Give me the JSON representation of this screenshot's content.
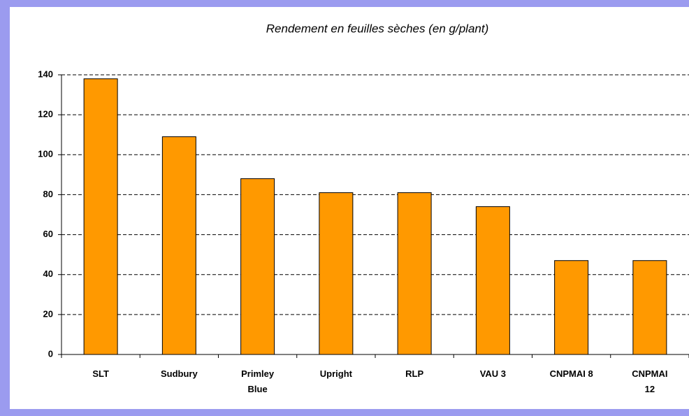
{
  "chart_data": {
    "type": "bar",
    "title": "Rendement en feuilles sèches  (en g/plant)",
    "categories": [
      "SLT",
      "Sudbury",
      "Primley Blue",
      "Upright",
      "RLP",
      "VAU 3",
      "CNPMAI 8",
      "CNPMAI 12"
    ],
    "values": [
      138,
      109,
      88,
      81,
      81,
      74,
      47,
      47
    ],
    "color": "#ff9900",
    "ylim": [
      0,
      140
    ],
    "yticks": [
      0,
      20,
      40,
      60,
      80,
      100,
      120,
      140
    ],
    "grid": true
  }
}
